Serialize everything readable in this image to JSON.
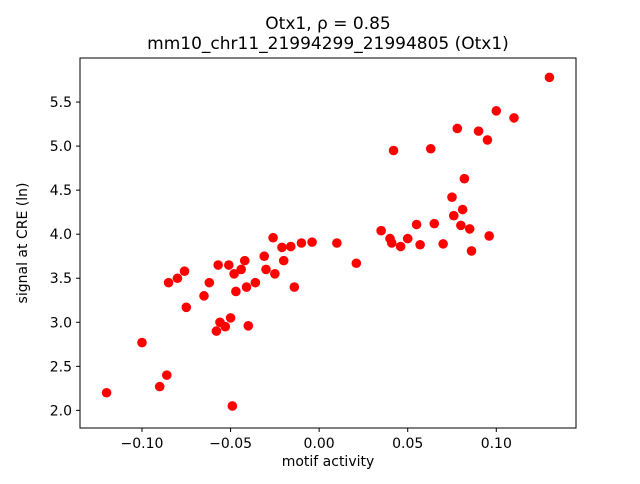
{
  "figure": {
    "title_line1": "Otx1, ρ = 0.85",
    "title_line2": "mm10_chr11_21994299_21994805 (Otx1)"
  },
  "chart_data": {
    "type": "scatter",
    "title": "Otx1, ρ = 0.85\nmm10_chr11_21994299_21994805 (Otx1)",
    "xlabel": "motif activity",
    "ylabel": "signal at CRE (ln)",
    "xlim": [
      -0.135,
      0.145
    ],
    "ylim": [
      1.8,
      6.0
    ],
    "xticks": [
      -0.1,
      -0.05,
      0.0,
      0.05,
      0.1
    ],
    "yticks": [
      2.0,
      2.5,
      3.0,
      3.5,
      4.0,
      4.5,
      5.0,
      5.5
    ],
    "grid": false,
    "legend": "none",
    "marker_color": "#ff0000",
    "marker_radius": 4.8,
    "points": [
      [
        -0.12,
        2.2
      ],
      [
        -0.1,
        2.77
      ],
      [
        -0.09,
        2.27
      ],
      [
        -0.086,
        2.4
      ],
      [
        -0.085,
        3.45
      ],
      [
        -0.08,
        3.5
      ],
      [
        -0.076,
        3.58
      ],
      [
        -0.075,
        3.17
      ],
      [
        -0.065,
        3.3
      ],
      [
        -0.062,
        3.45
      ],
      [
        -0.058,
        2.9
      ],
      [
        -0.057,
        3.65
      ],
      [
        -0.056,
        3.0
      ],
      [
        -0.053,
        2.95
      ],
      [
        -0.051,
        3.65
      ],
      [
        -0.05,
        3.05
      ],
      [
        -0.049,
        2.05
      ],
      [
        -0.048,
        3.55
      ],
      [
        -0.047,
        3.35
      ],
      [
        -0.044,
        3.6
      ],
      [
        -0.042,
        3.7
      ],
      [
        -0.041,
        3.4
      ],
      [
        -0.04,
        2.96
      ],
      [
        -0.036,
        3.45
      ],
      [
        -0.031,
        3.75
      ],
      [
        -0.03,
        3.6
      ],
      [
        -0.026,
        3.96
      ],
      [
        -0.025,
        3.55
      ],
      [
        -0.021,
        3.85
      ],
      [
        -0.02,
        3.7
      ],
      [
        -0.016,
        3.86
      ],
      [
        -0.014,
        3.4
      ],
      [
        -0.01,
        3.9
      ],
      [
        -0.004,
        3.91
      ],
      [
        0.01,
        3.9
      ],
      [
        0.021,
        3.67
      ],
      [
        0.035,
        4.04
      ],
      [
        0.04,
        3.95
      ],
      [
        0.041,
        3.9
      ],
      [
        0.042,
        4.95
      ],
      [
        0.046,
        3.86
      ],
      [
        0.05,
        3.95
      ],
      [
        0.055,
        4.11
      ],
      [
        0.057,
        3.88
      ],
      [
        0.063,
        4.97
      ],
      [
        0.065,
        4.12
      ],
      [
        0.07,
        3.89
      ],
      [
        0.075,
        4.42
      ],
      [
        0.076,
        4.21
      ],
      [
        0.078,
        5.2
      ],
      [
        0.08,
        4.1
      ],
      [
        0.081,
        4.28
      ],
      [
        0.082,
        4.63
      ],
      [
        0.085,
        4.06
      ],
      [
        0.086,
        3.81
      ],
      [
        0.09,
        5.17
      ],
      [
        0.095,
        5.07
      ],
      [
        0.096,
        3.98
      ],
      [
        0.1,
        5.4
      ],
      [
        0.11,
        5.32
      ],
      [
        0.13,
        5.78
      ]
    ]
  }
}
